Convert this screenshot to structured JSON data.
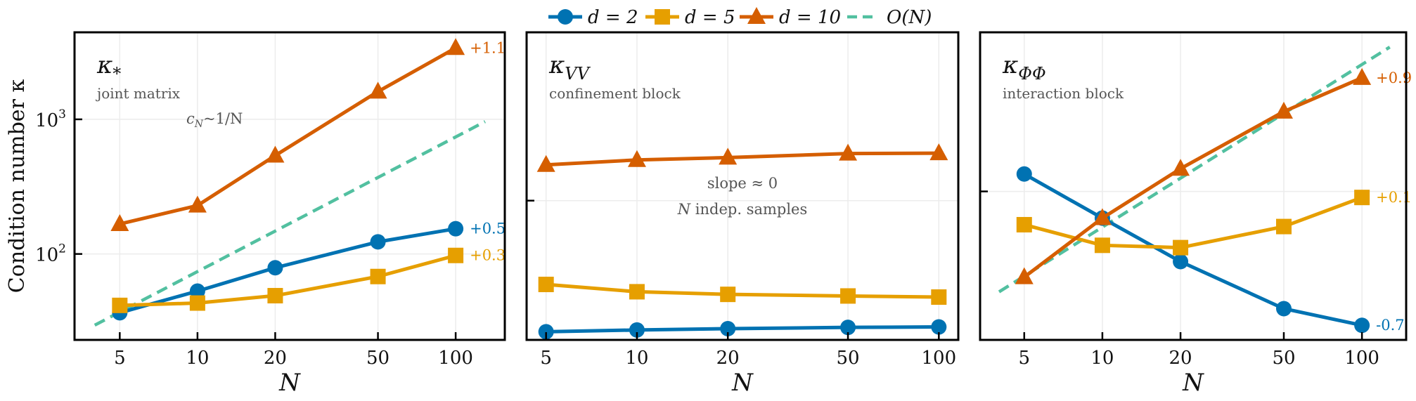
{
  "legend": {
    "position": "top-center",
    "entries": [
      {
        "label": "d = 2",
        "color": "#0072B2",
        "marker": "circle"
      },
      {
        "label": "d = 5",
        "color": "#E69F00",
        "marker": "square"
      },
      {
        "label": "d = 10",
        "color": "#D55E00",
        "marker": "triangle"
      },
      {
        "label": "O(N)",
        "color": "#52C0A0",
        "marker": "dashed-line"
      }
    ]
  },
  "chart_data": [
    {
      "type": "line",
      "title": {
        "symbol": "κ",
        "subscript": "*"
      },
      "subtitle": "joint matrix",
      "annotations": [
        {
          "main": "c",
          "sub": "N",
          "rest": "~1/N"
        }
      ],
      "xlabel": "N",
      "ylabel": "Condition number κ",
      "xscale": "log",
      "yscale": "log",
      "xlim": [
        3.34,
        155
      ],
      "ylim": [
        23,
        4430
      ],
      "xticks": [
        5,
        10,
        20,
        50,
        100
      ],
      "yticks": [
        {
          "value": 100,
          "base": "10",
          "exp": "2"
        },
        {
          "value": 1000,
          "base": "10",
          "exp": "3"
        }
      ],
      "grid": true,
      "x": [
        5,
        10,
        20,
        50,
        100
      ],
      "series": [
        {
          "name": "d = 2",
          "values": [
            36.6,
            53,
            79,
            123,
            154
          ],
          "slope_label": "+0.5"
        },
        {
          "name": "d = 5",
          "values": [
            41.5,
            43.2,
            49,
            68,
            97.5
          ],
          "slope_label": "+0.3"
        },
        {
          "name": "d = 10",
          "values": [
            167,
            229,
            538,
            1607,
            3390
          ],
          "slope_label": "+1.1"
        }
      ],
      "reference": {
        "name": "O(N)",
        "x": [
          4,
          130
        ],
        "y": [
          29.6,
          962
        ]
      }
    },
    {
      "type": "line",
      "title": {
        "symbol": "κ",
        "subscript": "VV"
      },
      "subtitle": "confinement block",
      "annotations": [
        {
          "text": "slope  ≈ 0"
        },
        {
          "italic": "N",
          "text": " indep. samples"
        }
      ],
      "xlabel": "N",
      "xscale": "log",
      "yscale": "log",
      "xlim": [
        4.31,
        116
      ],
      "ylim": [
        13.9,
        1086
      ],
      "xticks": [
        5,
        10,
        20,
        50,
        100
      ],
      "yticks": [
        {
          "value": 100
        }
      ],
      "grid": true,
      "x": [
        5,
        10,
        20,
        50,
        100
      ],
      "series": [
        {
          "name": "d = 2",
          "values": [
            15.6,
            16,
            16.3,
            16.6,
            16.7
          ]
        },
        {
          "name": "d = 5",
          "values": [
            30.5,
            27.5,
            26.5,
            25.9,
            25.5
          ]
        },
        {
          "name": "d = 10",
          "values": [
            166,
            178,
            184,
            195,
            196
          ]
        }
      ]
    },
    {
      "type": "line",
      "title": {
        "symbol": "κ",
        "subscript": "ΦΦ"
      },
      "subtitle": "interaction block",
      "annotations": [],
      "xlabel": "N",
      "xscale": "log",
      "yscale": "log",
      "xlim": [
        3.38,
        148
      ],
      "ylim": [
        12.2,
        953
      ],
      "xticks": [
        5,
        10,
        20,
        50,
        100
      ],
      "yticks": [
        {
          "value": 100
        }
      ],
      "grid": true,
      "x": [
        5,
        10,
        20,
        50,
        100
      ],
      "series": [
        {
          "name": "d = 2",
          "values": [
            128,
            68.5,
            37,
            19,
            15
          ],
          "slope_label": "-0.7"
        },
        {
          "name": "d = 5",
          "values": [
            62.4,
            46.6,
            45.1,
            60.8,
            91.8
          ],
          "slope_label": "+0.1"
        },
        {
          "name": "d = 10",
          "values": [
            29.7,
            68.6,
            138,
            310,
            500
          ],
          "slope_label": "+0.9"
        }
      ],
      "reference": {
        "name": "O(N)",
        "x": [
          4,
          128
        ],
        "y": [
          24.1,
          773
        ]
      }
    }
  ]
}
